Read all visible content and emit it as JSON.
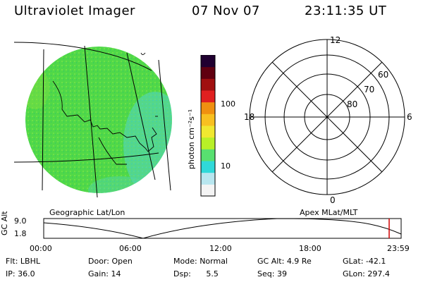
{
  "header": {
    "instrument": "Ultraviolet Imager",
    "date": "07 Nov 07",
    "time": "23:11:35 UT"
  },
  "image_panel": {
    "label": "Geographic Lat/Lon",
    "fill_color": "#48d850"
  },
  "colorbar": {
    "unit_label": "photon cm⁻²s⁻¹",
    "ticks": [
      "100",
      "10"
    ],
    "scale": "log",
    "colors": [
      "#f4f4f4",
      "#b8e6ef",
      "#30d9d9",
      "#58e070",
      "#b8f028",
      "#f0e830",
      "#f8c020",
      "#f09010",
      "#e02020",
      "#a01010",
      "#600010",
      "#200030"
    ]
  },
  "polar_plot": {
    "label": "Apex MLat/MLT",
    "mlt_labels": {
      "top": "12",
      "left": "18",
      "right": "6",
      "bottom": "0"
    },
    "lat_labels": [
      "60",
      "70",
      "80"
    ]
  },
  "altitude_plot": {
    "axis_title": "GC Alt",
    "y_ticks": [
      "9.0",
      "1.8"
    ],
    "x_ticks": [
      "00:00",
      "06:00",
      "12:00",
      "18:00",
      "23:59"
    ],
    "current_time_marker": "23:11",
    "marker_color": "#d00000"
  },
  "info_rows": [
    [
      {
        "label": "Flt:",
        "value": "LBHL"
      },
      {
        "label": "Door:",
        "value": "Open"
      },
      {
        "label": "Mode:",
        "value": "Normal"
      },
      {
        "label": "GC Alt:",
        "value": "4.9 Re"
      },
      {
        "label": "GLat:",
        "value": "-42.1"
      }
    ],
    [
      {
        "label": "IP:",
        "value": "36.0"
      },
      {
        "label": "Gain:",
        "value": "14"
      },
      {
        "label": "Dsp:",
        "value": "5.5"
      },
      {
        "label": "Seq:",
        "value": "39"
      },
      {
        "label": "GLon:",
        "value": "297.4"
      }
    ]
  ]
}
